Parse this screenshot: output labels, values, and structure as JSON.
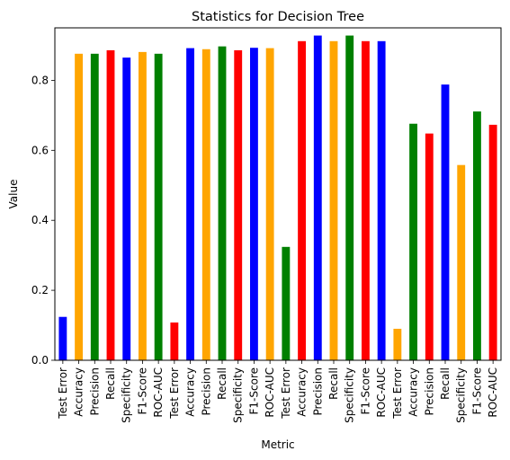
{
  "chart_data": {
    "type": "bar",
    "title": "Statistics for Decision Tree",
    "xlabel": "Metric",
    "ylabel": "Value",
    "ylim": [
      0,
      0.95
    ],
    "yticks": [
      "0.0",
      "0.2",
      "0.4",
      "0.6",
      "0.8"
    ],
    "categories": [
      "Test Error",
      "Accuracy",
      "Precision",
      "Recall",
      "Specificity",
      "F1-Score",
      "ROC-AUC",
      "Test Error",
      "Accuracy",
      "Precision",
      "Recall",
      "Specificity",
      "F1-Score",
      "ROC-AUC",
      "Test Error",
      "Accuracy",
      "Precision",
      "Recall",
      "Specificity",
      "F1-Score",
      "ROC-AUC",
      "Test Error",
      "Accuracy",
      "Precision",
      "Recall",
      "Specificity",
      "F1-Score",
      "ROC-AUC"
    ],
    "values": [
      0.124,
      0.876,
      0.876,
      0.886,
      0.865,
      0.881,
      0.876,
      0.108,
      0.892,
      0.889,
      0.897,
      0.886,
      0.893,
      0.892,
      0.324,
      0.912,
      0.928,
      0.912,
      0.928,
      0.912,
      0.912,
      0.09,
      0.676,
      0.648,
      0.788,
      0.558,
      0.711,
      0.673
    ],
    "bar_colors": [
      "#0000ff",
      "#ffa500",
      "#008000",
      "#ff0000",
      "#0000ff",
      "#ffa500",
      "#008000",
      "#ff0000",
      "#0000ff",
      "#ffa500",
      "#008000",
      "#ff0000",
      "#0000ff",
      "#ffa500",
      "#008000",
      "#ff0000",
      "#0000ff",
      "#ffa500",
      "#008000",
      "#ff0000",
      "#0000ff",
      "#ffa500",
      "#008000",
      "#ff0000",
      "#0000ff",
      "#ffa500",
      "#008000",
      "#ff0000"
    ],
    "grid": false,
    "legend": "none"
  }
}
